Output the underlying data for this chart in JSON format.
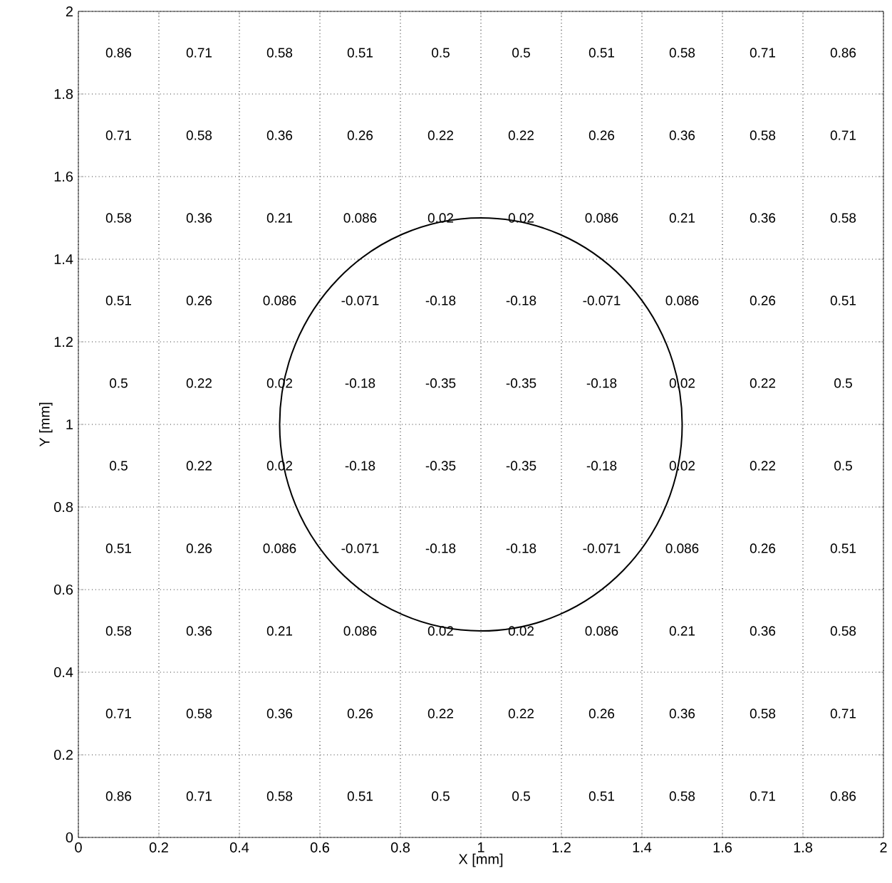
{
  "chart_data": {
    "type": "heatmap",
    "xlabel": "X [mm]",
    "ylabel": "Y [mm]",
    "x": [
      0.1,
      0.3,
      0.5,
      0.7,
      0.9,
      1.1,
      1.3,
      1.5,
      1.7,
      1.9
    ],
    "y": [
      1.9,
      1.7,
      1.5,
      1.3,
      1.1,
      0.9,
      0.7,
      0.5,
      0.3,
      0.1
    ],
    "cells": [
      [
        0.86,
        0.71,
        0.58,
        0.51,
        0.5,
        0.5,
        0.51,
        0.58,
        0.71,
        0.86
      ],
      [
        0.71,
        0.58,
        0.36,
        0.26,
        0.22,
        0.22,
        0.26,
        0.36,
        0.58,
        0.71
      ],
      [
        0.58,
        0.36,
        0.21,
        0.086,
        0.02,
        0.02,
        0.086,
        0.21,
        0.36,
        0.58
      ],
      [
        0.51,
        0.26,
        0.086,
        -0.071,
        -0.18,
        -0.18,
        -0.071,
        0.086,
        0.26,
        0.51
      ],
      [
        0.5,
        0.22,
        0.02,
        -0.18,
        -0.35,
        -0.35,
        -0.18,
        0.02,
        0.22,
        0.5
      ],
      [
        0.5,
        0.22,
        0.02,
        -0.18,
        -0.35,
        -0.35,
        -0.18,
        0.02,
        0.22,
        0.5
      ],
      [
        0.51,
        0.26,
        0.086,
        -0.071,
        -0.18,
        -0.18,
        -0.071,
        0.086,
        0.26,
        0.51
      ],
      [
        0.58,
        0.36,
        0.21,
        0.086,
        0.02,
        0.02,
        0.086,
        0.21,
        0.36,
        0.58
      ],
      [
        0.71,
        0.58,
        0.36,
        0.26,
        0.22,
        0.22,
        0.26,
        0.36,
        0.58,
        0.71
      ],
      [
        0.86,
        0.71,
        0.58,
        0.51,
        0.5,
        0.5,
        0.51,
        0.58,
        0.71,
        0.86
      ]
    ],
    "data_labels": true,
    "xlim": [
      0,
      2
    ],
    "ylim": [
      0,
      2
    ],
    "xticks": [
      0,
      0.2,
      0.4,
      0.6,
      0.8,
      1,
      1.2,
      1.4,
      1.6,
      1.8,
      2
    ],
    "yticks": [
      0,
      0.2,
      0.4,
      0.6,
      0.8,
      1,
      1.2,
      1.4,
      1.6,
      1.8,
      2
    ],
    "grid": true
  }
}
